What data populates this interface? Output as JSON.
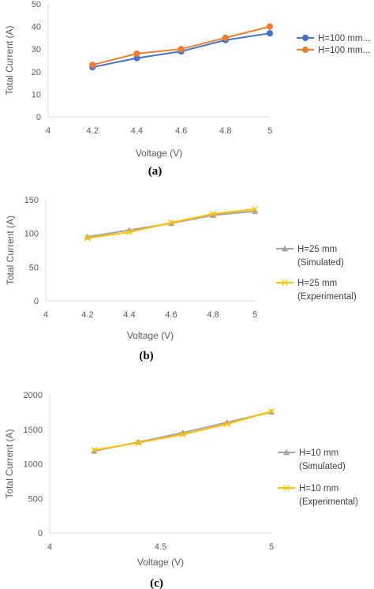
{
  "chart_data": [
    {
      "type": "line",
      "caption": "(a)",
      "xlabel": "Voltage (V)",
      "ylabel": "Total Current (A)",
      "xlim": [
        4,
        5
      ],
      "ylim": [
        0,
        50
      ],
      "xticks": [
        "4",
        "4.2",
        "4.4",
        "4.6",
        "4.8",
        "5"
      ],
      "yticks": [
        "0",
        "10",
        "20",
        "30",
        "40",
        "50"
      ],
      "grid": false,
      "legend_position": "right",
      "x": [
        4.2,
        4.4,
        4.6,
        4.8,
        5.0
      ],
      "series": [
        {
          "name": "H=100 mm...",
          "values": [
            22,
            26,
            29,
            34,
            37
          ],
          "color": "#4472C4",
          "marker": "circle"
        },
        {
          "name": "H=100 mm...",
          "values": [
            23,
            28,
            30,
            35,
            40
          ],
          "color": "#ED7D31",
          "marker": "circle"
        }
      ]
    },
    {
      "type": "line",
      "caption": "(b)",
      "xlabel": "Voltage (V)",
      "ylabel": "Total  Current (A)",
      "xlim": [
        4,
        5
      ],
      "ylim": [
        0,
        150
      ],
      "xticks": [
        "4",
        "4.2",
        "4.4",
        "4.6",
        "4.8",
        "5"
      ],
      "yticks": [
        "0",
        "50",
        "100",
        "150"
      ],
      "grid": false,
      "legend_position": "right",
      "x": [
        4.2,
        4.4,
        4.6,
        4.8,
        5.0
      ],
      "series": [
        {
          "name_lines": [
            "H=25 mm",
            "(Simulated)"
          ],
          "values": [
            95,
            105,
            115,
            127,
            133
          ],
          "color": "#A5A5A5",
          "marker": "triangle"
        },
        {
          "name_lines": [
            "H=25 mm",
            "(Experimental)"
          ],
          "values": [
            93,
            102,
            116,
            129,
            136
          ],
          "color": "#FFC000",
          "marker": "x"
        }
      ]
    },
    {
      "type": "line",
      "caption": "(c)",
      "xlabel": "Voltage (V)",
      "ylabel": "Total Current (A)",
      "xlim": [
        4,
        5
      ],
      "ylim": [
        0,
        2000
      ],
      "xticks": [
        "4",
        "4.5",
        "5"
      ],
      "yticks": [
        "0",
        "500",
        "1000",
        "1500",
        "2000"
      ],
      "grid": false,
      "legend_position": "right",
      "x": [
        4.2,
        4.4,
        4.6,
        4.8,
        5.0
      ],
      "series": [
        {
          "name_lines": [
            "H=10 mm",
            "(Simulated)"
          ],
          "values": [
            1185,
            1315,
            1450,
            1600,
            1750
          ],
          "color": "#A5A5A5",
          "marker": "triangle"
        },
        {
          "name_lines": [
            "H=10 mm",
            "(Experimental)"
          ],
          "values": [
            1200,
            1305,
            1425,
            1575,
            1760
          ],
          "color": "#FFC000",
          "marker": "x"
        }
      ]
    }
  ]
}
